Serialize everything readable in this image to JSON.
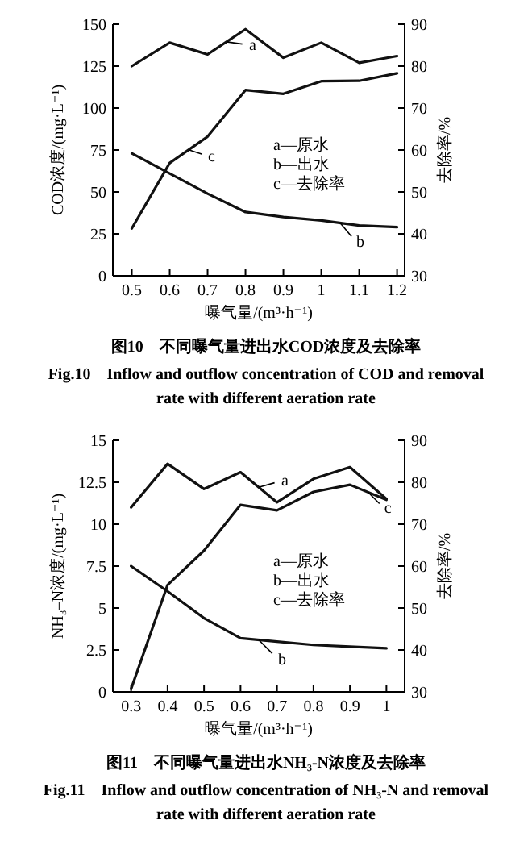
{
  "chart_data": [
    {
      "type": "line",
      "title": "图10　不同曝气量进出水COD浓度及去除率",
      "subtitle": "Fig.10　Inflow and outflow concentration of COD and removal rate with different aeration rate",
      "xlabel": "曝气量/(m³·h⁻¹)",
      "ylabel": "COD浓度/(mg·L⁻¹)",
      "y2label": "去除率/%",
      "x": [
        0.5,
        0.6,
        0.7,
        0.8,
        0.9,
        1.0,
        1.1,
        1.2
      ],
      "series": [
        {
          "name": "a",
          "color": "#111111",
          "values": [
            125,
            139,
            132,
            147,
            130,
            139,
            127,
            131
          ]
        },
        {
          "name": "b",
          "color": "#111111",
          "values": [
            73,
            61,
            49,
            38,
            35,
            33,
            30,
            29
          ]
        },
        {
          "name": "c",
          "color": "#111111",
          "axis": "y2",
          "values": [
            41.3,
            56.9,
            63.2,
            74.3,
            73.4,
            76.4,
            76.5,
            78.3
          ]
        }
      ],
      "xlim": [
        0.45,
        1.22
      ],
      "xticks": [
        0.5,
        0.6,
        0.7,
        0.8,
        0.9,
        1,
        1.1,
        1.2
      ],
      "ylim": [
        0,
        150
      ],
      "yticks": [
        0,
        25,
        50,
        75,
        100,
        125,
        150
      ],
      "y2lim": [
        30,
        90
      ],
      "y2ticks": [
        30,
        40,
        50,
        60,
        70,
        80,
        90
      ],
      "annotations": [
        "a—原水",
        "b—出水",
        "c—去除率"
      ],
      "grid": false,
      "marker": "none",
      "line_style": "solid"
    },
    {
      "type": "line",
      "title": "图11　不同曝气量进出水NH₃-N浓度及去除率",
      "subtitle": "Fig.11　Inflow and outflow concentration of NH₃-N and removal rate with different aeration rate",
      "xlabel": "曝气量/(m³·h⁻¹)",
      "ylabel": "NH₃–N浓度/(mg·L⁻¹)",
      "y2label": "去除率/%",
      "x": [
        0.3,
        0.4,
        0.5,
        0.6,
        0.7,
        0.8,
        0.9,
        1.0
      ],
      "series": [
        {
          "name": "a",
          "color": "#111111",
          "values": [
            11.0,
            13.6,
            12.1,
            13.1,
            11.3,
            12.7,
            13.4,
            11.5
          ]
        },
        {
          "name": "b",
          "color": "#111111",
          "values": [
            7.5,
            6.0,
            4.4,
            3.2,
            3.0,
            2.8,
            2.7,
            2.6
          ]
        },
        {
          "name": "c",
          "color": "#111111",
          "axis": "y2",
          "values": [
            30.7,
            55.5,
            63.7,
            74.6,
            73.3,
            77.7,
            79.4,
            75.8
          ]
        }
      ],
      "xlim": [
        0.25,
        1.05
      ],
      "xticks": [
        0.3,
        0.4,
        0.5,
        0.6,
        0.7,
        0.8,
        0.9,
        1
      ],
      "ylim": [
        0,
        15
      ],
      "yticks": [
        0,
        2.5,
        5,
        7.5,
        10,
        12.5,
        15
      ],
      "y2lim": [
        30,
        90
      ],
      "y2ticks": [
        30,
        40,
        50,
        60,
        70,
        80,
        90
      ],
      "annotations": [
        "a—原水",
        "b—出水",
        "c—去除率"
      ],
      "grid": false,
      "marker": "none",
      "line_style": "solid"
    }
  ]
}
